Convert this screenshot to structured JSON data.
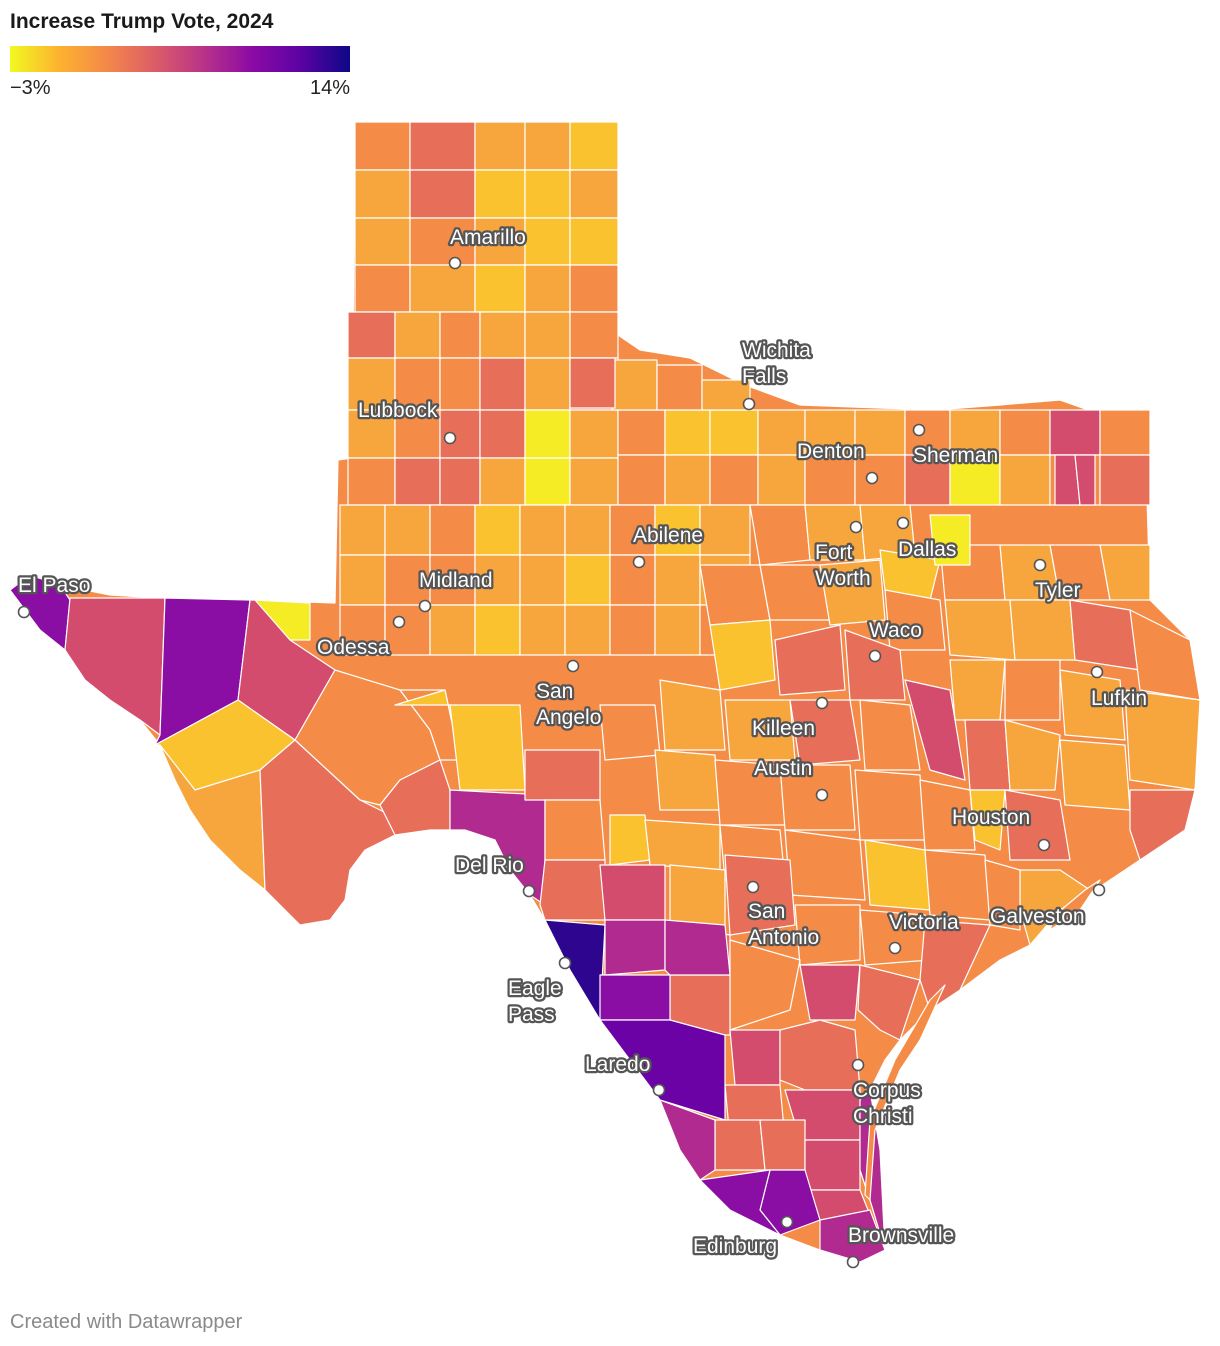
{
  "title": "Increase Trump Vote, 2024",
  "legend": {
    "min_label": "−3%",
    "max_label": "14%",
    "min_value": -3,
    "max_value": 14
  },
  "credit": "Created with Datawrapper",
  "colors": {
    "c1": "#f5ec25",
    "c2": "#f9c22e",
    "c3": "#f7a63e",
    "c4": "#f48c47",
    "c5": "#e76f5a",
    "c6": "#d44c6d",
    "c7": "#b02a8f",
    "c8": "#8a0da4",
    "c9": "#6a02a6",
    "c10": "#2d058f"
  },
  "cities": [
    {
      "id": "amarillo",
      "lines": [
        "Amarillo"
      ]
    },
    {
      "id": "lubbock",
      "lines": [
        "Lubbock"
      ]
    },
    {
      "id": "wichita",
      "lines": [
        "Wichita",
        "Falls"
      ]
    },
    {
      "id": "denton",
      "lines": [
        "Denton"
      ]
    },
    {
      "id": "sherman",
      "lines": [
        "Sherman"
      ]
    },
    {
      "id": "abilene",
      "lines": [
        "Abilene"
      ]
    },
    {
      "id": "fortworth",
      "lines": [
        "Fort",
        "Worth"
      ]
    },
    {
      "id": "dallas",
      "lines": [
        "Dallas"
      ]
    },
    {
      "id": "tyler",
      "lines": [
        "Tyler"
      ]
    },
    {
      "id": "elpaso",
      "lines": [
        "El Paso"
      ]
    },
    {
      "id": "midland",
      "lines": [
        "Midland"
      ]
    },
    {
      "id": "odessa",
      "lines": [
        "Odessa"
      ]
    },
    {
      "id": "sanangelo",
      "lines": [
        "San",
        "Angelo"
      ]
    },
    {
      "id": "waco",
      "lines": [
        "Waco"
      ]
    },
    {
      "id": "lufkin",
      "lines": [
        "Lufkin"
      ]
    },
    {
      "id": "killeen",
      "lines": [
        "Killeen"
      ]
    },
    {
      "id": "austin",
      "lines": [
        "Austin"
      ]
    },
    {
      "id": "houston",
      "lines": [
        "Houston"
      ]
    },
    {
      "id": "delrio",
      "lines": [
        "Del Rio"
      ]
    },
    {
      "id": "sanantonio",
      "lines": [
        "San",
        "Antonio"
      ]
    },
    {
      "id": "victoria",
      "lines": [
        "Victoria"
      ]
    },
    {
      "id": "galveston",
      "lines": [
        "Galveston"
      ]
    },
    {
      "id": "eaglepass",
      "lines": [
        "Eagle",
        "Pass"
      ]
    },
    {
      "id": "laredo",
      "lines": [
        "Laredo"
      ]
    },
    {
      "id": "corpus",
      "lines": [
        "Corpus",
        "Christi"
      ]
    },
    {
      "id": "edinburg",
      "lines": [
        "Edinburg"
      ]
    },
    {
      "id": "brownsville",
      "lines": [
        "Brownsville"
      ]
    }
  ]
}
